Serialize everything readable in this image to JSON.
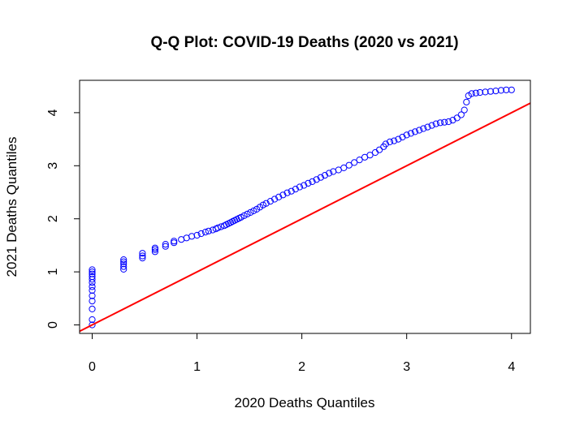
{
  "chart_data": {
    "type": "scatter",
    "title": "Q-Q Plot: COVID-19 Deaths (2020 vs 2021)",
    "xlabel": "2020 Deaths Quantiles",
    "ylabel": "2021 Deaths Quantiles",
    "xlim": [
      -0.12,
      4.18
    ],
    "ylim": [
      -0.16,
      4.61
    ],
    "x_ticks": [
      0,
      1,
      2,
      3,
      4
    ],
    "y_ticks": [
      0,
      1,
      2,
      3,
      4
    ],
    "point_color": "#0000ff",
    "line_color": "#ff0000",
    "reference_line": {
      "intercept": 0,
      "slope": 1
    },
    "grid": false,
    "points": [
      [
        0,
        0.0
      ],
      [
        0,
        0.1
      ],
      [
        0,
        0.3
      ],
      [
        0,
        0.45
      ],
      [
        0,
        0.55
      ],
      [
        0,
        0.65
      ],
      [
        0,
        0.72
      ],
      [
        0,
        0.8
      ],
      [
        0,
        0.86
      ],
      [
        0,
        0.91
      ],
      [
        0,
        0.96
      ],
      [
        0,
        1.0
      ],
      [
        0,
        1.04
      ],
      [
        0.3,
        1.05
      ],
      [
        0.3,
        1.1
      ],
      [
        0.3,
        1.15
      ],
      [
        0.3,
        1.19
      ],
      [
        0.3,
        1.23
      ],
      [
        0.48,
        1.26
      ],
      [
        0.48,
        1.3
      ],
      [
        0.48,
        1.35
      ],
      [
        0.6,
        1.38
      ],
      [
        0.6,
        1.42
      ],
      [
        0.6,
        1.45
      ],
      [
        0.7,
        1.48
      ],
      [
        0.7,
        1.52
      ],
      [
        0.78,
        1.55
      ],
      [
        0.78,
        1.58
      ],
      [
        0.85,
        1.61
      ],
      [
        0.9,
        1.64
      ],
      [
        0.95,
        1.67
      ],
      [
        1.0,
        1.69
      ],
      [
        1.04,
        1.72
      ],
      [
        1.08,
        1.75
      ],
      [
        1.11,
        1.77
      ],
      [
        1.15,
        1.79
      ],
      [
        1.18,
        1.81
      ],
      [
        1.2,
        1.83
      ],
      [
        1.23,
        1.85
      ],
      [
        1.26,
        1.87
      ],
      [
        1.28,
        1.89
      ],
      [
        1.3,
        1.91
      ],
      [
        1.32,
        1.93
      ],
      [
        1.34,
        1.95
      ],
      [
        1.36,
        1.97
      ],
      [
        1.38,
        1.99
      ],
      [
        1.4,
        2.01
      ],
      [
        1.42,
        2.03
      ],
      [
        1.45,
        2.06
      ],
      [
        1.48,
        2.09
      ],
      [
        1.51,
        2.12
      ],
      [
        1.54,
        2.15
      ],
      [
        1.57,
        2.18
      ],
      [
        1.6,
        2.22
      ],
      [
        1.63,
        2.26
      ],
      [
        1.66,
        2.29
      ],
      [
        1.7,
        2.33
      ],
      [
        1.74,
        2.37
      ],
      [
        1.78,
        2.41
      ],
      [
        1.82,
        2.45
      ],
      [
        1.86,
        2.49
      ],
      [
        1.9,
        2.52
      ],
      [
        1.94,
        2.56
      ],
      [
        1.98,
        2.6
      ],
      [
        2.02,
        2.63
      ],
      [
        2.06,
        2.67
      ],
      [
        2.1,
        2.7
      ],
      [
        2.14,
        2.74
      ],
      [
        2.18,
        2.78
      ],
      [
        2.22,
        2.82
      ],
      [
        2.26,
        2.86
      ],
      [
        2.3,
        2.89
      ],
      [
        2.35,
        2.92
      ],
      [
        2.4,
        2.96
      ],
      [
        2.45,
        3.01
      ],
      [
        2.5,
        3.06
      ],
      [
        2.55,
        3.11
      ],
      [
        2.6,
        3.16
      ],
      [
        2.65,
        3.2
      ],
      [
        2.7,
        3.25
      ],
      [
        2.74,
        3.3
      ],
      [
        2.78,
        3.36
      ],
      [
        2.8,
        3.41
      ],
      [
        2.84,
        3.45
      ],
      [
        2.88,
        3.47
      ],
      [
        2.92,
        3.5
      ],
      [
        2.96,
        3.54
      ],
      [
        3.0,
        3.58
      ],
      [
        3.04,
        3.61
      ],
      [
        3.08,
        3.64
      ],
      [
        3.12,
        3.67
      ],
      [
        3.16,
        3.7
      ],
      [
        3.2,
        3.73
      ],
      [
        3.24,
        3.76
      ],
      [
        3.28,
        3.79
      ],
      [
        3.32,
        3.81
      ],
      [
        3.36,
        3.82
      ],
      [
        3.4,
        3.83
      ],
      [
        3.44,
        3.86
      ],
      [
        3.48,
        3.9
      ],
      [
        3.52,
        3.96
      ],
      [
        3.55,
        4.05
      ],
      [
        3.57,
        4.2
      ],
      [
        3.59,
        4.32
      ],
      [
        3.62,
        4.36
      ],
      [
        3.66,
        4.37
      ],
      [
        3.7,
        4.38
      ],
      [
        3.75,
        4.39
      ],
      [
        3.8,
        4.4
      ],
      [
        3.85,
        4.41
      ],
      [
        3.9,
        4.42
      ],
      [
        3.95,
        4.43
      ],
      [
        4.0,
        4.43
      ]
    ]
  }
}
